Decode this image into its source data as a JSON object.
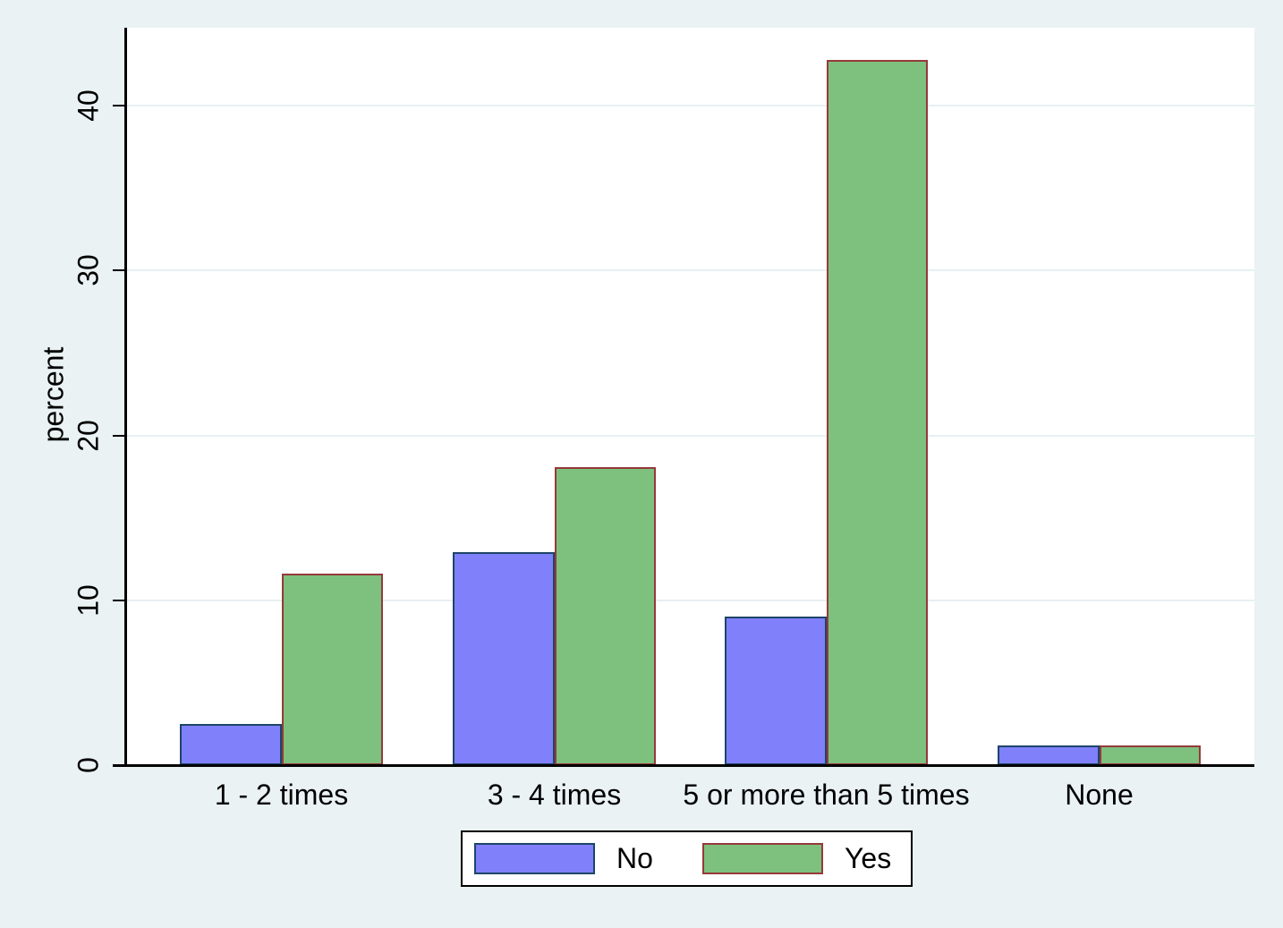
{
  "chart_data": {
    "type": "bar",
    "title": "",
    "ylabel": "percent",
    "xlabel": "",
    "categories": [
      "1 - 2 times",
      "3 - 4 times",
      "5 or more than 5 times",
      "None"
    ],
    "series": [
      {
        "name": "No",
        "values": [
          2.5,
          12.9,
          9.0,
          1.2
        ],
        "fill": "#8080fa",
        "border": "#1d4568"
      },
      {
        "name": "Yes",
        "values": [
          11.6,
          18.1,
          42.8,
          1.2
        ],
        "fill": "#7ec07e",
        "border": "#943a3a"
      }
    ],
    "yticks": [
      0,
      10,
      20,
      30,
      40
    ],
    "ylim": [
      0,
      44.7
    ],
    "grid": true,
    "legend_position": "bottom",
    "colors": {
      "page_background": "#eaf2f3",
      "plot_background": "#ffffff",
      "gridline": "#e7f0f2",
      "axis": "#000000"
    }
  }
}
